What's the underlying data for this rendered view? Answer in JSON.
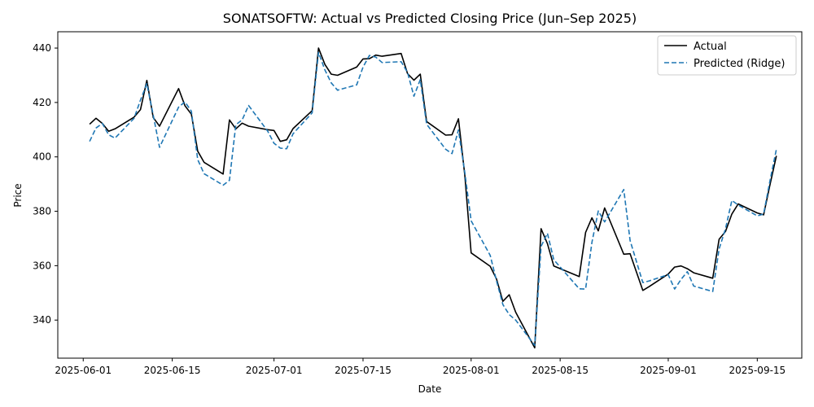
{
  "chart_data": {
    "type": "line",
    "title": "SONATSOFTW: Actual vs Predicted Closing Price (Jun–Sep 2025)",
    "xlabel": "Date",
    "ylabel": "Price",
    "x_tick_labels": [
      "2025-06-01",
      "2025-06-15",
      "2025-07-01",
      "2025-07-15",
      "2025-08-01",
      "2025-08-15",
      "2025-09-01",
      "2025-09-15"
    ],
    "x_ticks": [
      "2025-06-01",
      "2025-06-15",
      "2025-07-01",
      "2025-07-15",
      "2025-08-01",
      "2025-08-15",
      "2025-09-01",
      "2025-09-15"
    ],
    "y_ticks": [
      340,
      360,
      380,
      400,
      420,
      440
    ],
    "xlim": [
      "2025-05-28",
      "2025-09-22"
    ],
    "ylim": [
      326,
      446
    ],
    "grid": false,
    "legend_position": "top-right",
    "x": [
      "2025-06-02",
      "2025-06-03",
      "2025-06-04",
      "2025-06-05",
      "2025-06-06",
      "2025-06-09",
      "2025-06-10",
      "2025-06-11",
      "2025-06-12",
      "2025-06-13",
      "2025-06-16",
      "2025-06-17",
      "2025-06-18",
      "2025-06-19",
      "2025-06-20",
      "2025-06-23",
      "2025-06-24",
      "2025-06-25",
      "2025-06-26",
      "2025-06-27",
      "2025-06-30",
      "2025-07-01",
      "2025-07-02",
      "2025-07-03",
      "2025-07-04",
      "2025-07-07",
      "2025-07-08",
      "2025-07-09",
      "2025-07-10",
      "2025-07-11",
      "2025-07-14",
      "2025-07-15",
      "2025-07-16",
      "2025-07-17",
      "2025-07-18",
      "2025-07-21",
      "2025-07-22",
      "2025-07-23",
      "2025-07-24",
      "2025-07-25",
      "2025-07-28",
      "2025-07-29",
      "2025-07-30",
      "2025-07-31",
      "2025-08-01",
      "2025-08-04",
      "2025-08-05",
      "2025-08-06",
      "2025-08-07",
      "2025-08-08",
      "2025-08-11",
      "2025-08-12",
      "2025-08-13",
      "2025-08-14",
      "2025-08-18",
      "2025-08-19",
      "2025-08-20",
      "2025-08-21",
      "2025-08-22",
      "2025-08-25",
      "2025-08-26",
      "2025-08-28",
      "2025-08-29",
      "2025-09-01",
      "2025-09-02",
      "2025-09-03",
      "2025-09-04",
      "2025-09-05",
      "2025-09-08",
      "2025-09-09",
      "2025-09-10",
      "2025-09-11",
      "2025-09-12",
      "2025-09-15",
      "2025-09-16",
      "2025-09-17",
      "2025-09-18"
    ],
    "series": [
      {
        "name": "Actual",
        "color": "#000000",
        "style": "solid",
        "values": [
          412,
          414.2,
          412.3,
          409.4,
          410.3,
          414.6,
          417.4,
          428.1,
          414.5,
          411.3,
          425.1,
          418.8,
          415.7,
          402.1,
          398,
          393.7,
          413.6,
          410.3,
          412.4,
          411.3,
          410,
          409.7,
          405.7,
          406.3,
          410.4,
          417,
          440,
          434,
          430.4,
          430,
          433,
          436,
          436.1,
          437.4,
          437,
          438,
          430.6,
          428.2,
          430.4,
          413,
          408,
          408.1,
          414,
          393.3,
          364.7,
          359.8,
          355.1,
          346.9,
          349.3,
          342.9,
          329.8,
          373.6,
          368.1,
          359.9,
          356,
          372.2,
          377.6,
          372.8,
          381.2,
          364.2,
          364.4,
          350.9,
          352.3,
          356.9,
          359.5,
          359.9,
          358.9,
          357.4,
          355.4,
          369.7,
          372.6,
          379,
          382.7,
          379.4,
          378.7,
          389.7,
          400.4
        ]
      },
      {
        "name": "Predicted (Ridge)",
        "color": "#1f77b4",
        "style": "dashed",
        "values": [
          405.7,
          410.6,
          412.3,
          408.1,
          406.9,
          414.2,
          420.9,
          426.9,
          415.4,
          403.5,
          418.3,
          420.2,
          416.8,
          399,
          393.8,
          389.6,
          391.4,
          411.8,
          413.6,
          418.9,
          409.5,
          405,
          403.2,
          403,
          408.5,
          416.2,
          438.4,
          432,
          427.2,
          424.5,
          426.5,
          433,
          437.3,
          436.7,
          434.7,
          435,
          431,
          422.3,
          428.4,
          412,
          402.8,
          401.2,
          409.9,
          394.3,
          376.5,
          363.8,
          354.4,
          345.7,
          342,
          340,
          330.7,
          367.1,
          371.9,
          362.2,
          351.5,
          351.4,
          368.6,
          380.1,
          376.1,
          388,
          369.2,
          353.8,
          354.4,
          356.7,
          351.4,
          354.9,
          357.8,
          352.5,
          350.5,
          366.1,
          373.6,
          384,
          382.3,
          378.3,
          379,
          391.2,
          402.8
        ]
      }
    ]
  }
}
